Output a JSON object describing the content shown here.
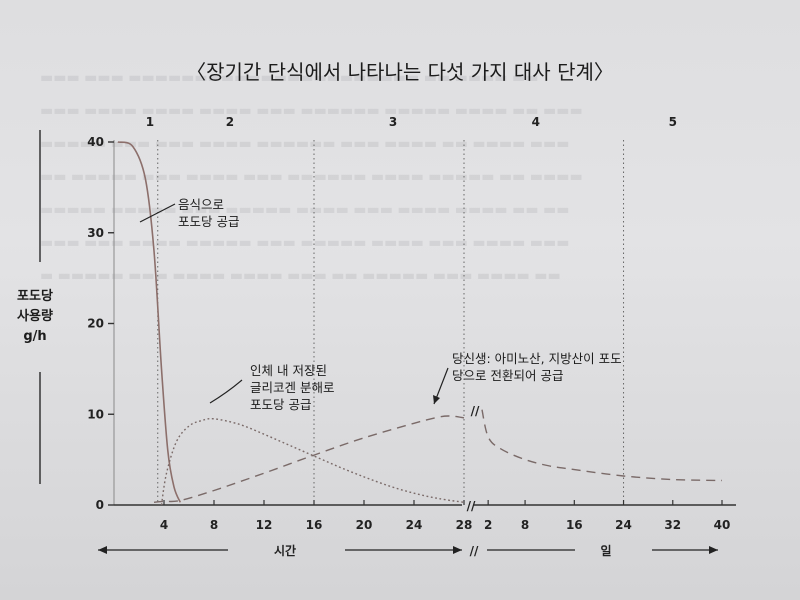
{
  "chart_data": {
    "type": "line",
    "title": "〈장기간 단식에서 나타나는 다섯 가지 대사 단계〉",
    "ylabel_lines": [
      "포도당",
      "사용량",
      "g/h"
    ],
    "ylim": [
      0,
      40
    ],
    "yticks": [
      0,
      10,
      20,
      30,
      40
    ],
    "stages": [
      "1",
      "2",
      "3",
      "4",
      "5"
    ],
    "hours_axis": {
      "label": "시간",
      "range": [
        0,
        28
      ],
      "ticks": [
        4,
        8,
        12,
        16,
        20,
        24,
        28
      ]
    },
    "days_axis": {
      "label": "일",
      "range": [
        1,
        40
      ],
      "ticks": [
        2,
        8,
        16,
        24,
        32,
        40
      ]
    },
    "axis_break_mark": "//",
    "series": [
      {
        "name": "음식으로 포도당 공급",
        "style": "solid",
        "color": "#8c6f6b",
        "hours": [
          [
            0.3,
            40
          ],
          [
            1.5,
            39.5
          ],
          [
            2.5,
            36
          ],
          [
            3.2,
            28
          ],
          [
            3.8,
            15
          ],
          [
            4.3,
            6
          ],
          [
            4.8,
            2
          ],
          [
            5.3,
            0.3
          ]
        ]
      },
      {
        "name": "인체 내 저장된 글리코겐 분해로 포도당 공급",
        "style": "dotted",
        "color": "#7a6a68",
        "hours": [
          [
            3.8,
            0
          ],
          [
            4.2,
            3.5
          ],
          [
            5,
            7
          ],
          [
            6,
            8.7
          ],
          [
            7,
            9.3
          ],
          [
            8,
            9.5
          ],
          [
            10,
            8.9
          ],
          [
            12,
            7.8
          ],
          [
            14,
            6.6
          ],
          [
            16,
            5.4
          ],
          [
            18,
            4.2
          ],
          [
            20,
            3.1
          ],
          [
            22,
            2.1
          ],
          [
            24,
            1.3
          ],
          [
            26,
            0.7
          ],
          [
            28,
            0.3
          ]
        ]
      },
      {
        "name": "당신생: 아미노산, 지방산이 포도당으로 전환되어 공급",
        "style": "dashed",
        "color": "#7a6a68",
        "hours": [
          [
            3.2,
            0.3
          ],
          [
            4,
            0.4
          ],
          [
            5.3,
            0.5
          ],
          [
            8,
            1.6
          ],
          [
            12,
            3.5
          ],
          [
            16,
            5.5
          ],
          [
            20,
            7.4
          ],
          [
            24,
            9
          ],
          [
            26,
            9.7
          ],
          [
            27,
            9.8
          ],
          [
            28,
            9.6
          ]
        ],
        "days": [
          [
            1,
            10.5
          ],
          [
            2,
            7.5
          ],
          [
            4,
            6.2
          ],
          [
            8,
            5
          ],
          [
            12,
            4.3
          ],
          [
            16,
            3.9
          ],
          [
            24,
            3.2
          ],
          [
            32,
            2.8
          ],
          [
            40,
            2.7
          ]
        ]
      }
    ],
    "annotations": {
      "food": [
        "음식으로",
        "포도당 공급"
      ],
      "glycogen": [
        "인체 내 저장된",
        "글리코겐 분해로",
        "포도당 공급"
      ],
      "gluconeo": [
        "당신생: 아미노산, 지방산이 포도",
        "당으로 전환되어 공급"
      ]
    },
    "grid": false,
    "legend": "none"
  }
}
